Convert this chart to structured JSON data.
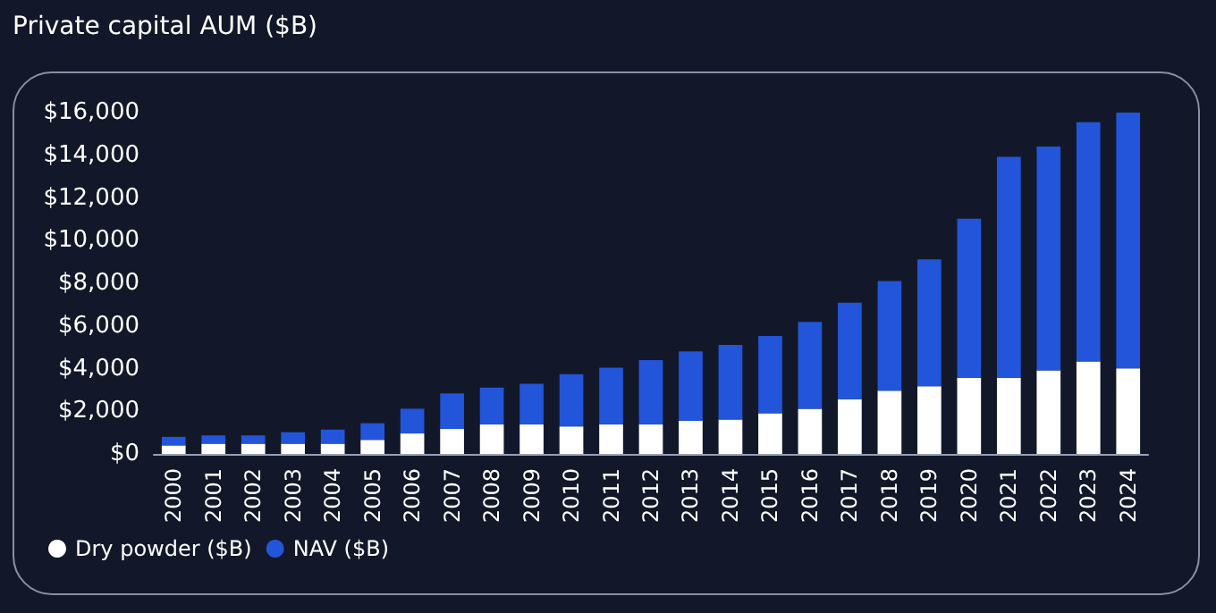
{
  "chart_data": {
    "type": "bar",
    "title": "Private capital AUM ($B)",
    "stacked": true,
    "categories": [
      "2000",
      "2001",
      "2002",
      "2003",
      "2004",
      "2005",
      "2006",
      "2007",
      "2008",
      "2009",
      "2010",
      "2011",
      "2012",
      "2013",
      "2014",
      "2015",
      "2016",
      "2017",
      "2018",
      "2019",
      "2020",
      "2021",
      "2022",
      "2023",
      "2024"
    ],
    "series": [
      {
        "name": "Dry powder ($B)",
        "color": "#ffffff",
        "values": [
          400,
          480,
          480,
          480,
          480,
          660,
          960,
          1170,
          1380,
          1380,
          1290,
          1380,
          1380,
          1550,
          1610,
          1910,
          2120,
          2570,
          2960,
          3170,
          3560,
          3560,
          3920,
          4340,
          4010
        ]
      },
      {
        "name": "NAV ($B)",
        "color": "#2255d9",
        "values": [
          400,
          390,
          390,
          540,
          660,
          780,
          1160,
          1670,
          1730,
          1910,
          2450,
          2660,
          3020,
          3260,
          3500,
          3620,
          4070,
          4520,
          5140,
          5950,
          7470,
          10370,
          10490,
          11210,
          12020
        ]
      }
    ],
    "ylim": [
      0,
      16000
    ],
    "yticks": [
      {
        "value": 0,
        "label": "$0"
      },
      {
        "value": 2000,
        "label": "$2,000"
      },
      {
        "value": 4000,
        "label": "$4,000"
      },
      {
        "value": 6000,
        "label": "$6,000"
      },
      {
        "value": 8000,
        "label": "$8,000"
      },
      {
        "value": 10000,
        "label": "$10,000"
      },
      {
        "value": 12000,
        "label": "$12,000"
      },
      {
        "value": 14000,
        "label": "$14,000"
      },
      {
        "value": 16000,
        "label": "$16,000"
      }
    ],
    "grid": false,
    "legend": "bottom left"
  }
}
